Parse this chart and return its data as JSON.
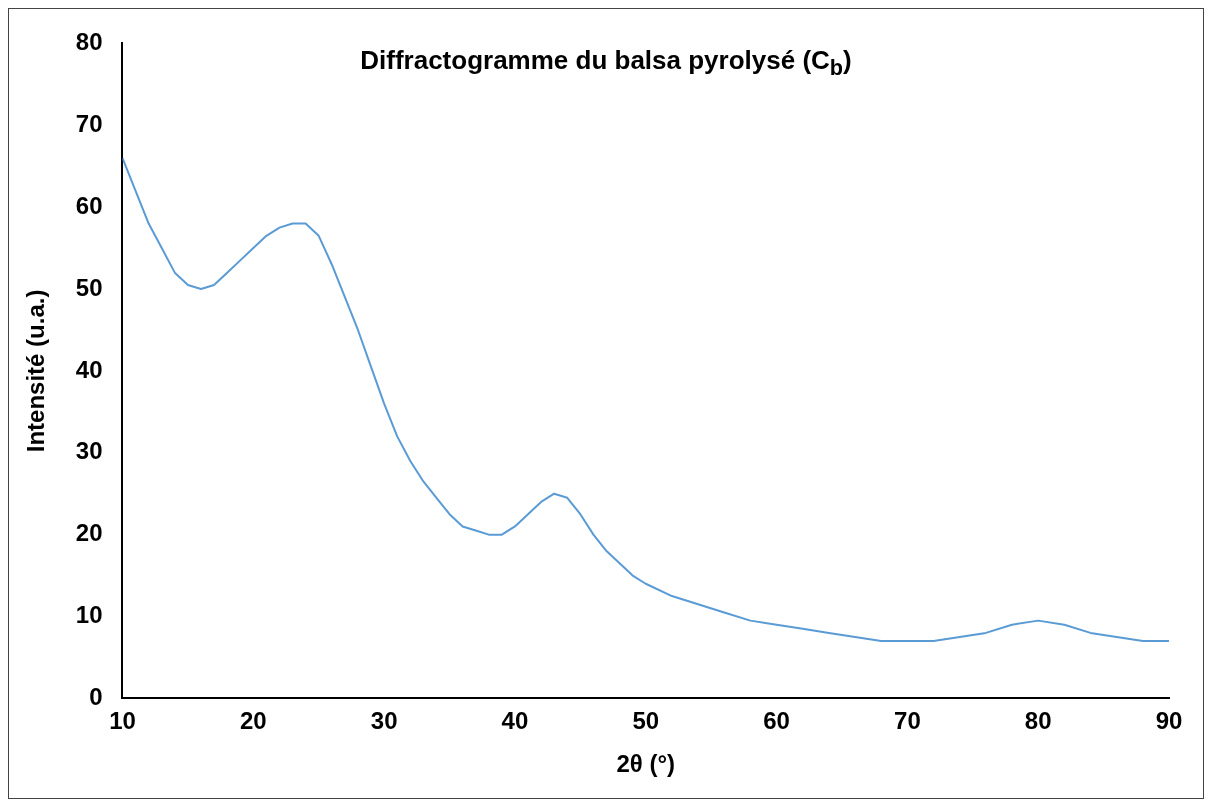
{
  "chart_data": {
    "type": "line",
    "title": "Diffractogramme du balsa pyrolysé (C$_{b}$)",
    "xlabel": "2θ (°)",
    "ylabel": "Intensité (u.a.)",
    "x": [
      10,
      11,
      12,
      13,
      14,
      15,
      16,
      17,
      18,
      19,
      20,
      21,
      22,
      23,
      24,
      25,
      26,
      27,
      28,
      29,
      30,
      31,
      32,
      33,
      34,
      35,
      36,
      37,
      38,
      39,
      40,
      41,
      42,
      43,
      44,
      45,
      46,
      47,
      48,
      49,
      50,
      52,
      54,
      56,
      58,
      60,
      62,
      64,
      66,
      68,
      70,
      72,
      74,
      76,
      78,
      80,
      82,
      84,
      86,
      88,
      90
    ],
    "series": [
      {
        "color": "#5b9bd5",
        "values": [
          66,
          62,
          58,
          55,
          52,
          50.5,
          50,
          50.5,
          52,
          53.5,
          55,
          56.5,
          57.5,
          58,
          58,
          56.5,
          53,
          49,
          45,
          40.5,
          36,
          32,
          29,
          26.5,
          24.5,
          22.5,
          21,
          20.5,
          20,
          20,
          21,
          22.5,
          24,
          25,
          24.5,
          22.5,
          20,
          18,
          16.5,
          15,
          14,
          12.5,
          11.5,
          10.5,
          9.5,
          9,
          8.5,
          8,
          7.5,
          7,
          7,
          7,
          7.5,
          8,
          9,
          9.5,
          9,
          8,
          7.5,
          7,
          7
        ]
      }
    ],
    "xlim": [
      10,
      90
    ],
    "xticks": [
      10,
      20,
      30,
      40,
      50,
      60,
      70,
      80,
      90
    ],
    "ylim": [
      0,
      80
    ],
    "yticks": [
      0,
      10,
      20,
      30,
      40,
      50,
      60,
      70,
      80
    ],
    "grid": false,
    "legend": false,
    "marker": "none",
    "line_style": "solid"
  }
}
